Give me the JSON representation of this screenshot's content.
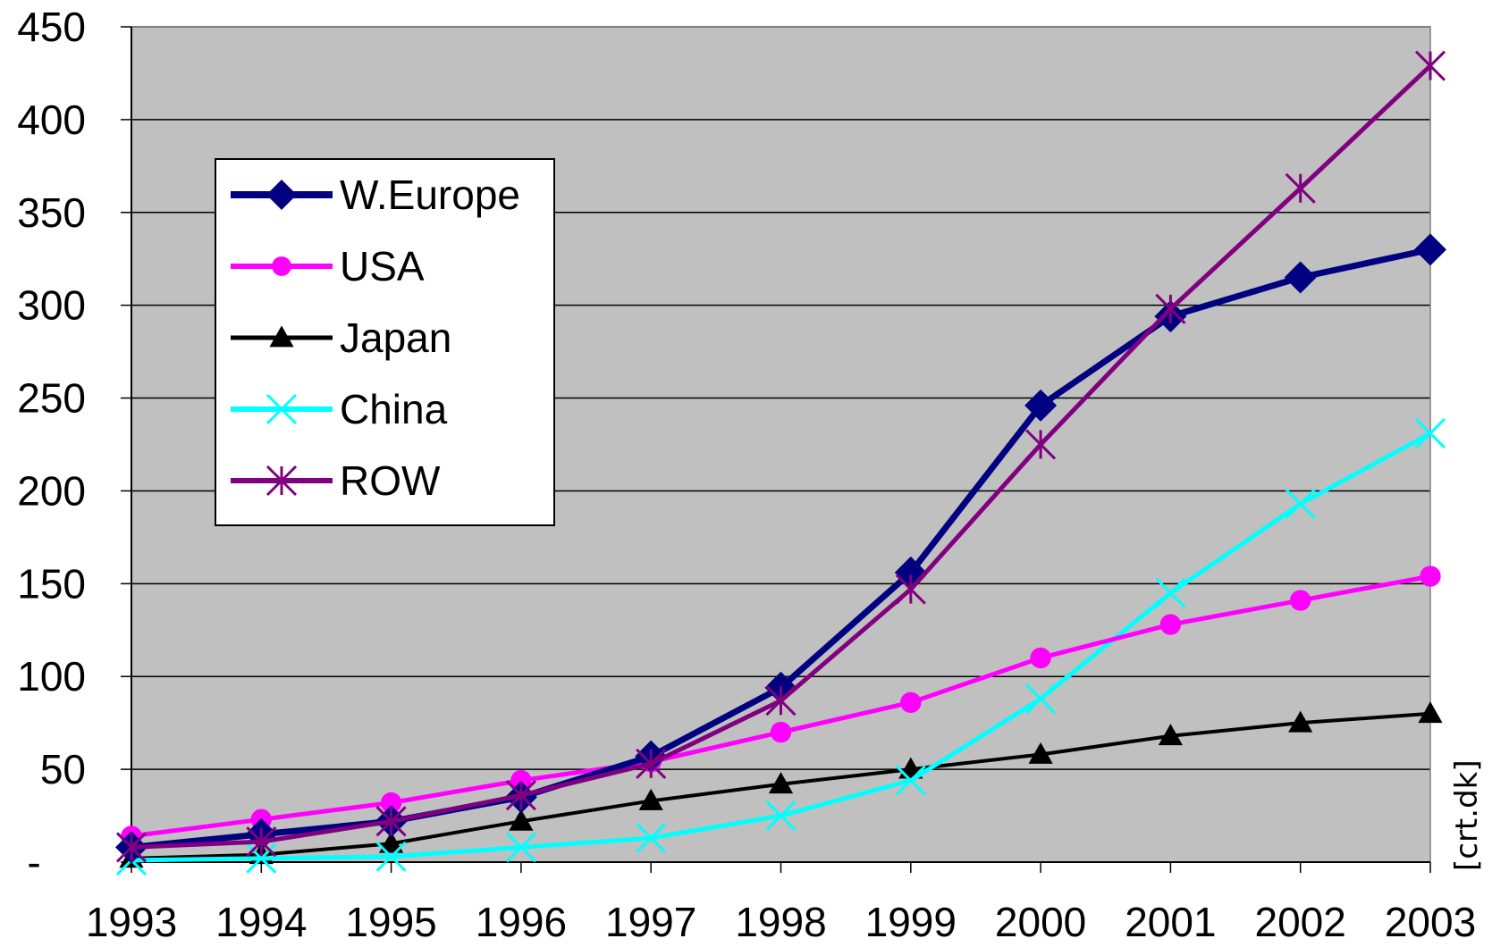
{
  "chart_data": {
    "type": "line",
    "title": "",
    "xlabel": "",
    "ylabel": "",
    "categories": [
      "1993",
      "1994",
      "1995",
      "1996",
      "1997",
      "1998",
      "1999",
      "2000",
      "2001",
      "2002",
      "2003"
    ],
    "ylim": [
      0,
      450
    ],
    "y_ticks": [
      0,
      50,
      100,
      150,
      200,
      250,
      300,
      350,
      400,
      450
    ],
    "y_tick_labels": [
      "-",
      "50",
      "100",
      "150",
      "200",
      "250",
      "300",
      "350",
      "400",
      "450"
    ],
    "grid": true,
    "plot_background": "#c0c0c0",
    "legend_position": "upper-left inside plot",
    "series": [
      {
        "name": "W.Europe",
        "color": "#000080",
        "marker": "diamond",
        "values": [
          8,
          15,
          22,
          35,
          57,
          94,
          156,
          246,
          294,
          315,
          330
        ]
      },
      {
        "name": "USA",
        "color": "#ff00ff",
        "marker": "circle",
        "values": [
          14,
          23,
          32,
          44,
          54,
          70,
          86,
          110,
          128,
          141,
          154
        ]
      },
      {
        "name": "Japan",
        "color": "#000000",
        "marker": "triangle",
        "values": [
          2,
          4,
          10,
          22,
          33,
          42,
          50,
          58,
          68,
          75,
          80
        ]
      },
      {
        "name": "China",
        "color": "#00ffff",
        "marker": "x",
        "values": [
          1,
          2,
          3,
          8,
          13,
          25,
          44,
          88,
          145,
          193,
          231
        ]
      },
      {
        "name": "ROW",
        "color": "#800080",
        "marker": "asterisk",
        "values": [
          8,
          11,
          22,
          36,
          53,
          87,
          147,
          225,
          298,
          363,
          429
        ]
      }
    ]
  },
  "credit": "[crt.dk]"
}
